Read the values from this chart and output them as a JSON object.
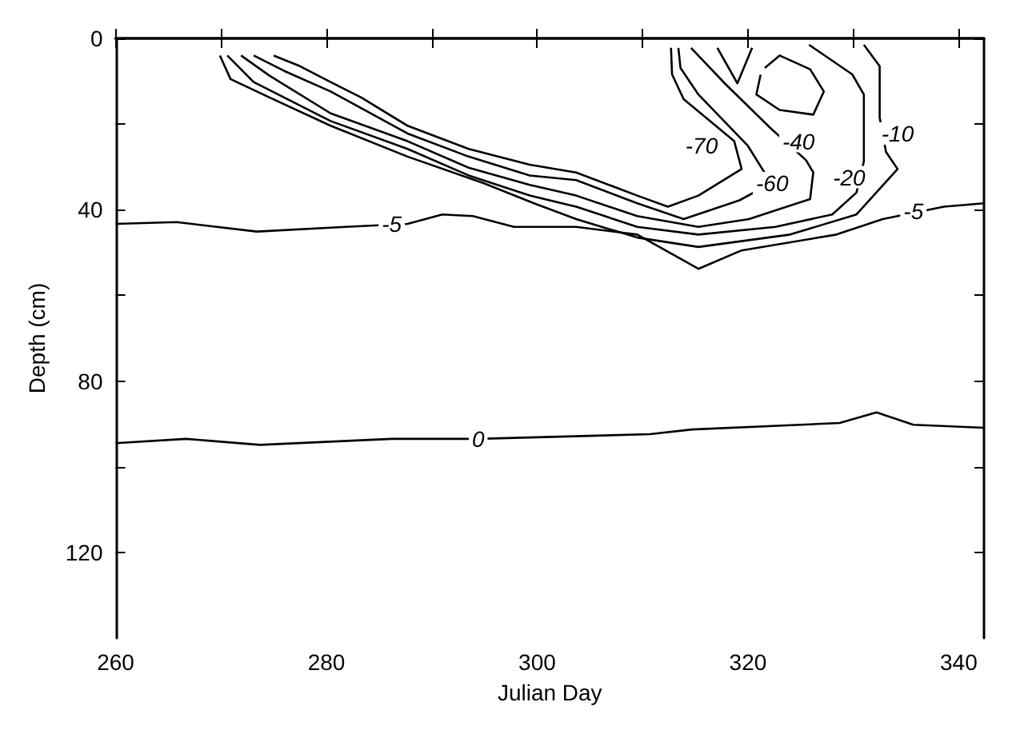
{
  "chart_data": {
    "type": "line",
    "xlabel": "Julian Day",
    "ylabel": "Depth (cm)",
    "xlim": [
      260,
      342.4
    ],
    "xticks": [
      260,
      {
        "value": 270,
        "label": null
      },
      280,
      {
        "value": 290,
        "label": null
      },
      300,
      {
        "value": 310,
        "label": null
      },
      320,
      {
        "value": 330,
        "label": null
      },
      340
    ],
    "ylim": [
      140,
      0
    ],
    "yticks": [
      0,
      {
        "value": 20,
        "label": null
      },
      40,
      {
        "value": 60,
        "label": null
      },
      80,
      {
        "value": 100,
        "label": null
      },
      120
    ],
    "grid": false,
    "marker": "none",
    "line_style": "solid",
    "series": [
      {
        "color": "#000000",
        "x": [
          260,
          265.8,
          273.4,
          281.8,
          287.7,
          291.0,
          293.9,
          297.8,
          303.7,
          309.5,
          315.3,
          319.4,
          328.4,
          332.8,
          338.6,
          342.4
        ],
        "values": [
          43.3,
          42.9,
          45.1,
          44.0,
          43.3,
          41.1,
          41.5,
          44.0,
          44.0,
          45.8,
          53.8,
          49.5,
          45.8,
          42.2,
          39.3,
          38.5
        ]
      },
      {
        "color": "#000000",
        "x": [
          260,
          266.7,
          273.7,
          286.2,
          294.4,
          310.7,
          314.7,
          328.7,
          332.2,
          335.7,
          342.4
        ],
        "values": [
          94.5,
          93.5,
          94.9,
          93.5,
          93.5,
          92.4,
          91.3,
          89.8,
          87.3,
          90.2,
          90.9
        ]
      },
      {
        "color": "#000000",
        "x": [
          269.9,
          270.9,
          274.6,
          280.4,
          287.7,
          294.9,
          299.7,
          303.7,
          309.5,
          315.3,
          324.0,
          330.3,
          334.2,
          333.1,
          332.5,
          332.5,
          331.0
        ],
        "values": [
          4.0,
          9.5,
          13.8,
          20.4,
          27.6,
          33.8,
          38.5,
          42.2,
          46.5,
          48.7,
          45.8,
          41.1,
          30.5,
          26.5,
          18.5,
          6.5,
          1.5
        ]
      },
      {
        "color": "#000000",
        "x": [
          270.6,
          273.1,
          280.4,
          287.7,
          293.5,
          299.3,
          303.7,
          309.5,
          315.3,
          322.6,
          328.0,
          330.3,
          331.0,
          331.0,
          329.9,
          325.8
        ],
        "values": [
          4.0,
          10.2,
          19.3,
          25.8,
          32.0,
          36.7,
          39.3,
          44.0,
          45.8,
          44.0,
          41.1,
          36.0,
          28.7,
          13.1,
          8.4,
          1.5
        ]
      },
      {
        "color": "#000000",
        "x": [
          271.9,
          274.6,
          280.4,
          287.7,
          293.5,
          299.3,
          303.7,
          309.5,
          315.3,
          320.1,
          325.9,
          326.2,
          325.5,
          322.2,
          317.8,
          314.6
        ],
        "values": [
          4.0,
          8.7,
          17.5,
          24.0,
          30.2,
          34.2,
          36.7,
          41.5,
          44.0,
          42.2,
          37.5,
          31.3,
          28.4,
          21.1,
          10.5,
          2.2
        ]
      },
      {
        "color": "#000000",
        "x": [
          273.1,
          276.0,
          280.4,
          287.7,
          293.5,
          299.3,
          303.7,
          309.5,
          313.9,
          319.2,
          322.2,
          320.0,
          315.3,
          313.6,
          313.4
        ],
        "values": [
          4.0,
          7.6,
          12.4,
          22.2,
          27.6,
          32.0,
          33.1,
          38.5,
          42.2,
          37.8,
          33.8,
          25.1,
          13.1,
          6.9,
          2.2
        ]
      },
      {
        "color": "#000000",
        "x": [
          275.0,
          277.5,
          280.4,
          283.3,
          287.7,
          293.5,
          299.3,
          303.7,
          309.5,
          312.4,
          315.3,
          319.4,
          318.7,
          313.9,
          312.8,
          312.7
        ],
        "values": [
          4.0,
          6.5,
          10.2,
          13.8,
          20.4,
          25.8,
          29.5,
          31.3,
          36.7,
          39.3,
          36.7,
          30.5,
          24.0,
          14.2,
          8.4,
          2.2
        ]
      },
      {
        "color": "#000000",
        "x": [
          317.1,
          319.0,
          320.4
        ],
        "values": [
          2.2,
          10.5,
          2.2
        ]
      },
      {
        "color": "#000000",
        "x": [
          321.6,
          323.0,
          325.9,
          327.2,
          326.2,
          323.0,
          320.8,
          321.2
        ],
        "values": [
          6.9,
          4.0,
          7.2,
          12.4,
          17.8,
          16.7,
          13.1,
          8.5
        ]
      }
    ],
    "annotations": [
      {
        "text": "-5",
        "x": 286.2,
        "y": 43.3
      },
      {
        "text": "-5",
        "x": 335.7,
        "y": 40.4
      },
      {
        "text": "0",
        "x": 294.4,
        "y": 93.5
      },
      {
        "text": "-70",
        "x": 315.6,
        "y": 25.1
      },
      {
        "text": "-60",
        "x": 322.3,
        "y": 33.8
      },
      {
        "text": "-40",
        "x": 324.8,
        "y": 24.0
      },
      {
        "text": "-20",
        "x": 329.6,
        "y": 32.4
      },
      {
        "text": "-10",
        "x": 334.2,
        "y": 22.2
      }
    ]
  }
}
